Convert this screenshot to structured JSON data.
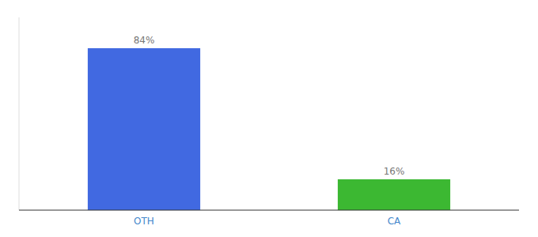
{
  "chart_data": {
    "type": "bar",
    "categories": [
      "OTH",
      "CA"
    ],
    "values": [
      84,
      16
    ],
    "value_labels": [
      "84%",
      "16%"
    ],
    "colors": [
      "#4169e1",
      "#3cb832"
    ],
    "ylim": [
      0,
      100
    ],
    "data_labels": true,
    "tick_labels": "x",
    "grid": false
  }
}
